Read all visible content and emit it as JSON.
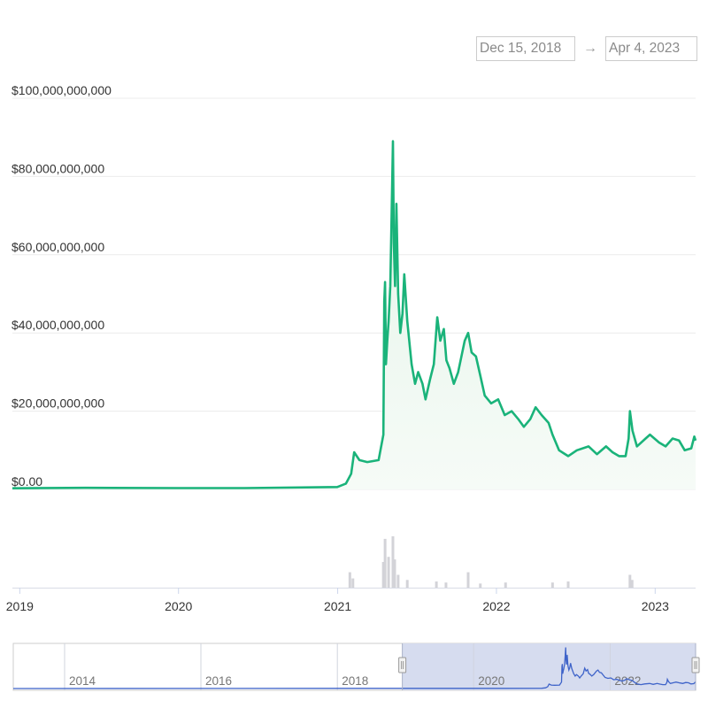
{
  "range_selector": {
    "from": "Dec 15, 2018",
    "arrow": "→",
    "to": "Apr 4, 2023"
  },
  "colors": {
    "line": "#1ab37a",
    "area": "#e9f6ec",
    "volume": "#d3d3d8",
    "navigator_line": "#3e63c9",
    "navigator_mask": "#d6dcef",
    "grid": "#ececec"
  },
  "chart_data": {
    "type": "line",
    "xlabel": "",
    "ylabel": "",
    "x_range": [
      "2018-12-15",
      "2023-04-04"
    ],
    "ylim": [
      0,
      100000000000
    ],
    "y_tick_labels": [
      "$0.00",
      "$20,000,000,000",
      "$40,000,000,000",
      "$60,000,000,000",
      "$80,000,000,000",
      "$100,000,000,000"
    ],
    "x_tick_labels": [
      "2019",
      "2020",
      "2021",
      "2022",
      "2023"
    ],
    "grid": true,
    "series": [
      {
        "values": [
          [
            "2018-12-15",
            300000000
          ],
          [
            "2019-06-01",
            400000000
          ],
          [
            "2019-12-31",
            350000000
          ],
          [
            "2020-06-01",
            350000000
          ],
          [
            "2020-12-31",
            600000000
          ],
          [
            "2021-01-20",
            1500000000
          ],
          [
            "2021-02-01",
            4000000000
          ],
          [
            "2021-02-08",
            9500000000
          ],
          [
            "2021-02-20",
            7500000000
          ],
          [
            "2021-03-10",
            7000000000
          ],
          [
            "2021-04-05",
            7500000000
          ],
          [
            "2021-04-16",
            14000000000
          ],
          [
            "2021-04-18",
            48000000000
          ],
          [
            "2021-04-20",
            53000000000
          ],
          [
            "2021-04-22",
            32000000000
          ],
          [
            "2021-04-25",
            38000000000
          ],
          [
            "2021-04-28",
            43000000000
          ],
          [
            "2021-05-02",
            52000000000
          ],
          [
            "2021-05-05",
            70000000000
          ],
          [
            "2021-05-08",
            89000000000
          ],
          [
            "2021-05-10",
            63000000000
          ],
          [
            "2021-05-13",
            52000000000
          ],
          [
            "2021-05-16",
            73000000000
          ],
          [
            "2021-05-20",
            50000000000
          ],
          [
            "2021-05-25",
            40000000000
          ],
          [
            "2021-05-30",
            45000000000
          ],
          [
            "2021-06-03",
            55000000000
          ],
          [
            "2021-06-10",
            43000000000
          ],
          [
            "2021-06-20",
            32000000000
          ],
          [
            "2021-06-28",
            27000000000
          ],
          [
            "2021-07-05",
            30000000000
          ],
          [
            "2021-07-15",
            27000000000
          ],
          [
            "2021-07-22",
            23000000000
          ],
          [
            "2021-08-01",
            28000000000
          ],
          [
            "2021-08-10",
            32000000000
          ],
          [
            "2021-08-18",
            44000000000
          ],
          [
            "2021-08-25",
            38000000000
          ],
          [
            "2021-09-02",
            41000000000
          ],
          [
            "2021-09-08",
            33000000000
          ],
          [
            "2021-09-15",
            31000000000
          ],
          [
            "2021-09-25",
            27000000000
          ],
          [
            "2021-10-05",
            30000000000
          ],
          [
            "2021-10-20",
            38000000000
          ],
          [
            "2021-10-28",
            40000000000
          ],
          [
            "2021-11-05",
            35000000000
          ],
          [
            "2021-11-15",
            34000000000
          ],
          [
            "2021-11-25",
            29000000000
          ],
          [
            "2021-12-05",
            24000000000
          ],
          [
            "2021-12-20",
            22000000000
          ],
          [
            "2022-01-05",
            23000000000
          ],
          [
            "2022-01-20",
            19000000000
          ],
          [
            "2022-02-05",
            20000000000
          ],
          [
            "2022-02-20",
            18000000000
          ],
          [
            "2022-03-05",
            16000000000
          ],
          [
            "2022-03-20",
            18000000000
          ],
          [
            "2022-04-01",
            21000000000
          ],
          [
            "2022-04-15",
            19000000000
          ],
          [
            "2022-05-01",
            17000000000
          ],
          [
            "2022-05-10",
            14000000000
          ],
          [
            "2022-05-25",
            10000000000
          ],
          [
            "2022-06-15",
            8500000000
          ],
          [
            "2022-07-05",
            10000000000
          ],
          [
            "2022-08-01",
            11000000000
          ],
          [
            "2022-08-20",
            9000000000
          ],
          [
            "2022-09-10",
            11000000000
          ],
          [
            "2022-09-25",
            9500000000
          ],
          [
            "2022-10-10",
            8500000000
          ],
          [
            "2022-10-25",
            8500000000
          ],
          [
            "2022-11-01",
            13000000000
          ],
          [
            "2022-11-04",
            20000000000
          ],
          [
            "2022-11-10",
            15000000000
          ],
          [
            "2022-11-20",
            11000000000
          ],
          [
            "2022-12-10",
            13000000000
          ],
          [
            "2022-12-20",
            14000000000
          ],
          [
            "2023-01-10",
            12000000000
          ],
          [
            "2023-01-25",
            11000000000
          ],
          [
            "2023-02-10",
            13000000000
          ],
          [
            "2023-02-25",
            12500000000
          ],
          [
            "2023-03-10",
            10000000000
          ],
          [
            "2023-03-25",
            10500000000
          ],
          [
            "2023-04-01",
            13500000000
          ],
          [
            "2023-04-04",
            12500000000
          ]
        ]
      }
    ],
    "volume": [
      [
        "2021-01-29",
        0.3
      ],
      [
        "2021-02-05",
        0.18
      ],
      [
        "2021-04-16",
        0.5
      ],
      [
        "2021-04-20",
        0.95
      ],
      [
        "2021-04-28",
        0.6
      ],
      [
        "2021-05-08",
        1.0
      ],
      [
        "2021-05-12",
        0.55
      ],
      [
        "2021-05-20",
        0.25
      ],
      [
        "2021-06-10",
        0.15
      ],
      [
        "2021-08-16",
        0.12
      ],
      [
        "2021-09-07",
        0.1
      ],
      [
        "2021-10-28",
        0.3
      ],
      [
        "2021-11-25",
        0.08
      ],
      [
        "2022-01-22",
        0.1
      ],
      [
        "2022-05-10",
        0.1
      ],
      [
        "2022-06-15",
        0.12
      ],
      [
        "2022-11-04",
        0.25
      ],
      [
        "2022-11-09",
        0.15
      ]
    ],
    "navigator": {
      "x_tick_labels": [
        "2014",
        "2016",
        "2018",
        "2020",
        "2022"
      ],
      "selected_range": [
        "2018-12-15",
        "2023-04-04"
      ]
    }
  }
}
